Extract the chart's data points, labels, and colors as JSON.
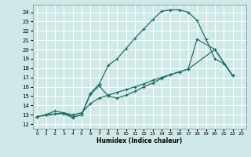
{
  "xlabel": "Humidex (Indice chaleur)",
  "bg_color": "#cfe8e8",
  "grid_color": "#ffffff",
  "line_color": "#1a6b5a",
  "xlim": [
    -0.5,
    23.5
  ],
  "ylim": [
    11.5,
    24.8
  ],
  "xticks": [
    0,
    1,
    2,
    3,
    4,
    5,
    6,
    7,
    8,
    9,
    10,
    11,
    12,
    13,
    14,
    15,
    16,
    17,
    18,
    19,
    20,
    21,
    22,
    23
  ],
  "yticks": [
    12,
    13,
    14,
    15,
    16,
    17,
    18,
    19,
    20,
    21,
    22,
    23,
    24
  ],
  "line1_x": [
    0,
    1,
    2,
    3,
    4,
    5,
    6,
    7,
    8,
    9,
    10,
    11,
    12,
    13,
    14,
    15,
    16,
    17,
    18,
    19,
    20,
    21,
    22
  ],
  "line1_y": [
    12.8,
    13.0,
    13.1,
    13.1,
    12.7,
    13.0,
    15.3,
    16.3,
    18.3,
    19.0,
    20.1,
    21.2,
    22.2,
    23.2,
    24.1,
    24.25,
    24.25,
    24.0,
    23.1,
    21.1,
    19.0,
    18.5,
    17.2
  ],
  "line2_x": [
    0,
    1,
    2,
    3,
    4,
    5,
    6,
    7,
    8,
    9,
    10,
    11,
    12,
    13,
    14,
    15,
    16,
    17,
    20,
    22
  ],
  "line2_y": [
    12.8,
    13.0,
    13.4,
    13.2,
    13.0,
    13.2,
    14.2,
    14.8,
    15.1,
    15.4,
    15.7,
    16.0,
    16.3,
    16.7,
    17.0,
    17.3,
    17.6,
    17.9,
    20.0,
    17.2
  ],
  "line3_x": [
    0,
    3,
    4,
    5,
    6,
    7,
    8,
    9,
    10,
    11,
    12,
    13,
    14,
    15,
    16,
    17,
    18,
    20,
    22
  ],
  "line3_y": [
    12.8,
    13.2,
    12.8,
    13.0,
    15.2,
    16.1,
    15.0,
    14.8,
    15.1,
    15.5,
    16.0,
    16.4,
    16.9,
    17.3,
    17.6,
    17.9,
    21.1,
    20.0,
    17.2
  ]
}
